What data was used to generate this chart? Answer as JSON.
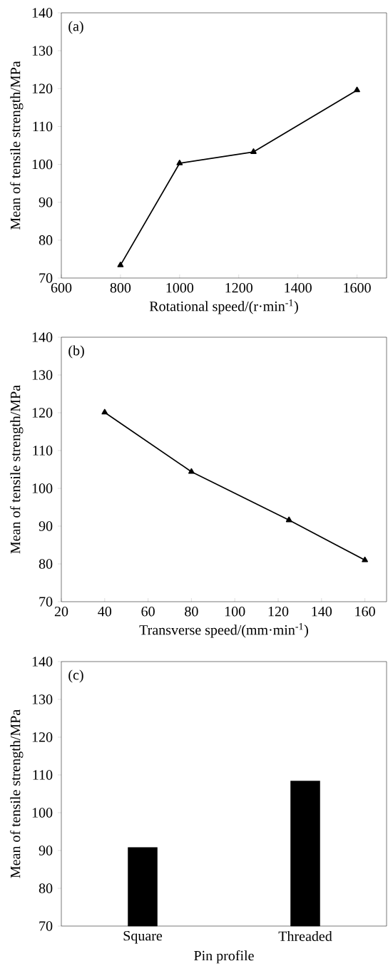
{
  "chart_data": [
    {
      "type": "line",
      "annotations": [
        "(a)"
      ],
      "xlabel": "Rotational speed/(r·min$^{-1}$)",
      "ylabel": "Mean of tensile strength/MPa",
      "marker": "triangle",
      "x": [
        800,
        1000,
        1250,
        1600
      ],
      "xlim": [
        600,
        1700
      ],
      "xticks": [
        600,
        800,
        1000,
        1200,
        1400,
        1600
      ],
      "ylim": [
        70,
        140
      ],
      "yticks": [
        70,
        80,
        90,
        100,
        110,
        120,
        130,
        140
      ],
      "series": [
        {
          "color": "#000000",
          "values": [
            73.4,
            100.3,
            103.3,
            119.6
          ]
        }
      ]
    },
    {
      "type": "line",
      "annotations": [
        "(b)"
      ],
      "xlabel": "Transverse speed/(mm·min$^{-1}$)",
      "ylabel": "Mean of tensile strength/MPa",
      "marker": "triangle",
      "x": [
        40,
        80,
        125,
        160
      ],
      "xlim": [
        20,
        170
      ],
      "xticks": [
        20,
        40,
        60,
        80,
        100,
        120,
        140,
        160
      ],
      "ylim": [
        70,
        140
      ],
      "yticks": [
        70,
        80,
        90,
        100,
        110,
        120,
        130,
        140
      ],
      "series": [
        {
          "color": "#000000",
          "values": [
            120.1,
            104.4,
            91.6,
            81.0
          ]
        }
      ]
    },
    {
      "type": "bar",
      "annotations": [
        "(c)"
      ],
      "xlabel": "Pin profile",
      "ylabel": "Mean of tensile strength/MPa",
      "categories": [
        "Square",
        "Threaded"
      ],
      "ylim": [
        70,
        140
      ],
      "yticks": [
        70,
        80,
        90,
        100,
        110,
        120,
        130,
        140
      ],
      "series": [
        {
          "color": "#000000",
          "values": [
            90.8,
            108.4
          ]
        }
      ]
    }
  ]
}
